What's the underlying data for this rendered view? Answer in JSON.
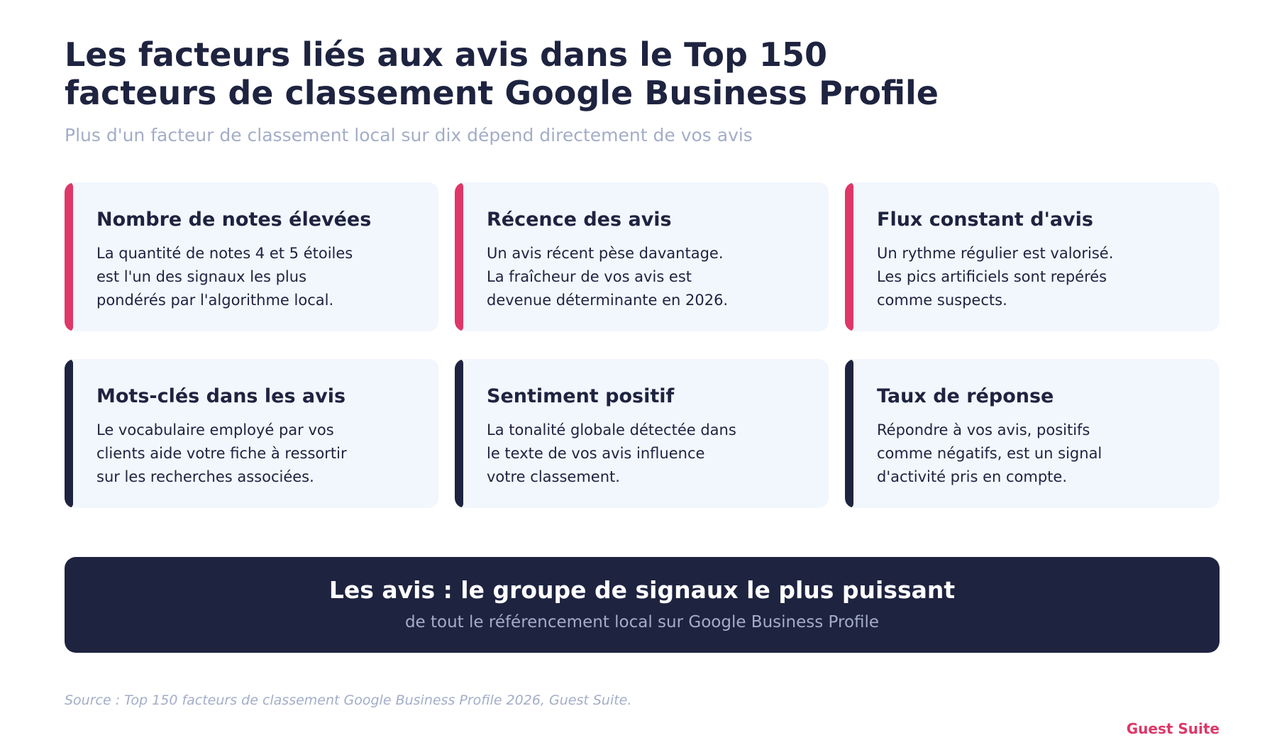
{
  "header": {
    "title_lines": [
      "Les facteurs liés aux avis dans le Top 150",
      "facteurs de classement Google Business Profile"
    ],
    "subtitle": "Plus d'un facteur de classement local sur dix dépend directement de vos avis"
  },
  "colors": {
    "accent": "#de3768",
    "dark": "#1e2340",
    "card_bg": "#f2f6fd",
    "muted": "#a3adc8"
  },
  "cards": [
    {
      "title": "Nombre de notes élevées",
      "lines": [
        "La quantité de notes 4 et 5 étoiles",
        "est l'un des signaux les plus",
        "pondérés par l'algorithme local."
      ]
    },
    {
      "title": "Récence des avis",
      "lines": [
        "Un avis récent pèse davantage.",
        "La fraîcheur de vos avis est",
        "devenue déterminante en 2026."
      ]
    },
    {
      "title": "Flux constant d'avis",
      "lines": [
        "Un rythme régulier est valorisé.",
        "Les pics artificiels sont repérés",
        "comme suspects."
      ]
    },
    {
      "title": "Mots-clés dans les avis",
      "lines": [
        "Le vocabulaire employé par vos",
        "clients aide votre fiche à ressortir",
        "sur les recherches associées."
      ]
    },
    {
      "title": "Sentiment positif",
      "lines": [
        "La tonalité globale détectée dans",
        "le texte de vos avis influence",
        "votre classement."
      ]
    },
    {
      "title": "Taux de réponse",
      "lines": [
        "Répondre à vos avis, positifs",
        "comme négatifs, est un signal",
        "d'activité pris en compte."
      ]
    }
  ],
  "banner": {
    "title": "Les avis : le groupe de signaux le plus puissant",
    "subtitle": "de tout le référencement local sur Google Business Profile"
  },
  "footer": {
    "source": "Source : Top 150 facteurs de classement Google Business Profile 2026, Guest Suite.",
    "brand": "Guest Suite"
  }
}
